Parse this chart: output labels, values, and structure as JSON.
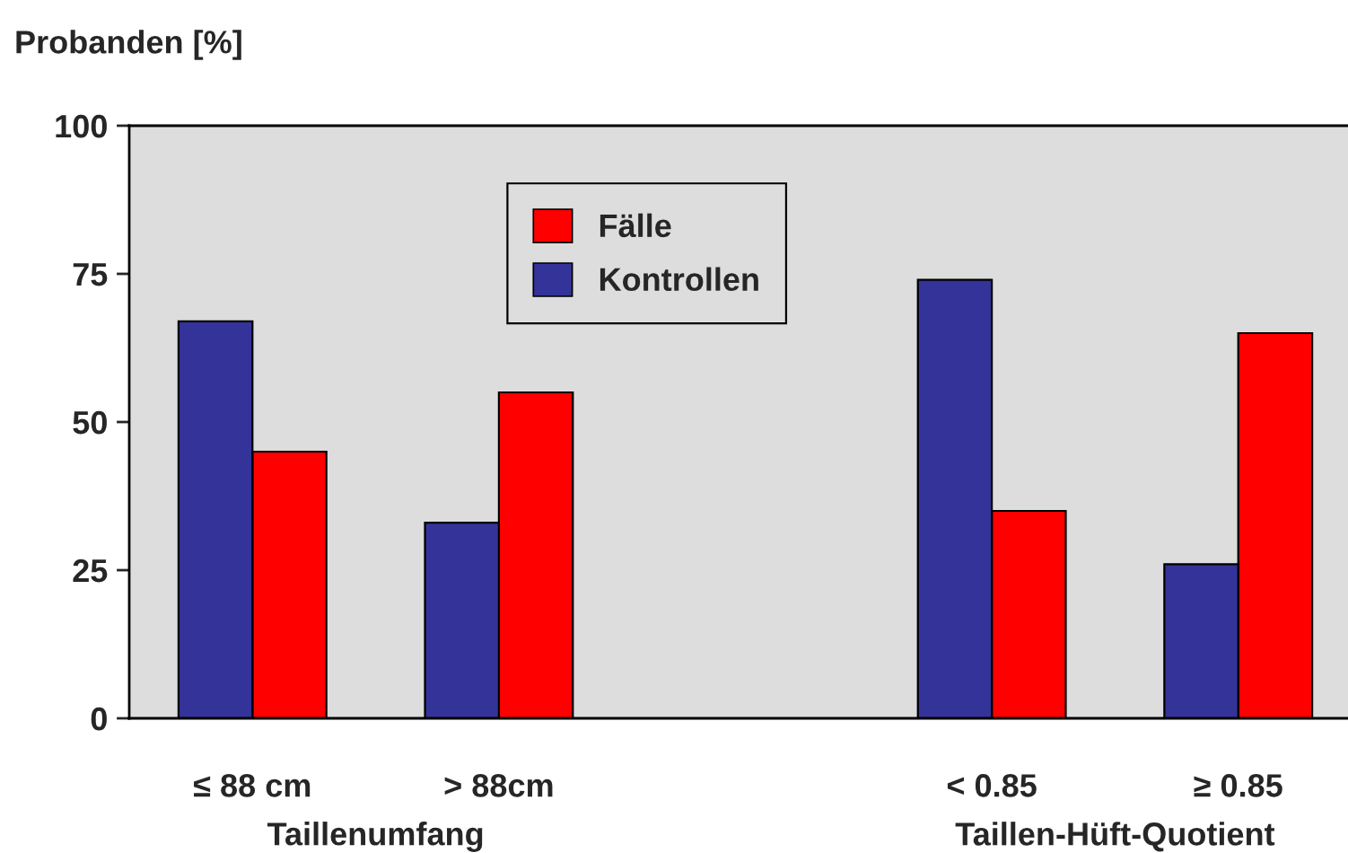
{
  "chart_data": {
    "type": "bar",
    "ylabel": "Probanden [%]",
    "categories": [
      "≤ 88 cm",
      "> 88cm",
      null,
      "< 0.85",
      "≥ 0.85"
    ],
    "series": [
      {
        "name": "Fälle",
        "color": "#ff0000",
        "values": [
          45,
          55,
          null,
          35,
          65
        ]
      },
      {
        "name": "Kontrollen",
        "color": "#333399",
        "values": [
          67,
          33,
          null,
          74,
          26
        ]
      }
    ],
    "annotations": [
      "Taillenumfang",
      "Taillen-Hüft-Quotient"
    ],
    "ylim": [
      0,
      100
    ],
    "yticks": [
      0,
      25,
      50,
      75,
      100
    ],
    "grid": false,
    "legend": "top"
  }
}
